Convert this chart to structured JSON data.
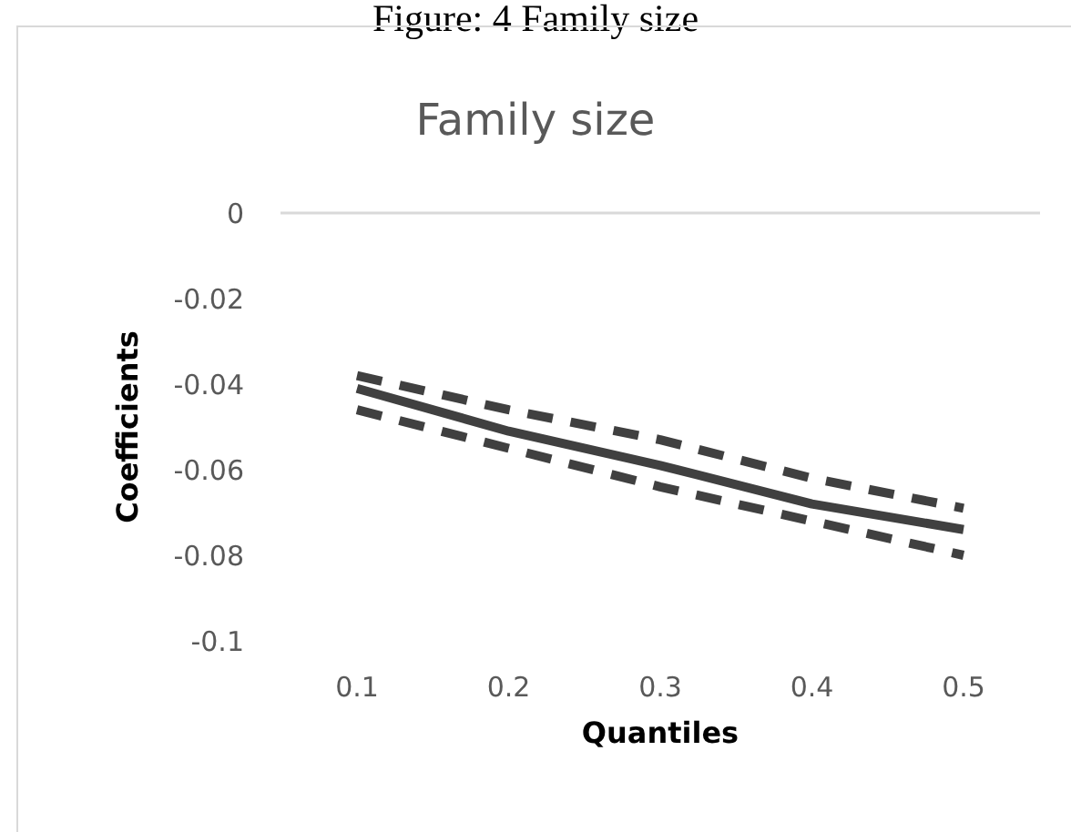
{
  "chart_data": {
    "type": "line",
    "title": "Figure: 4 Family size",
    "subtitle": "Family size",
    "xlabel": "Quantiles",
    "ylabel": "Coefficients",
    "categories": [
      "0.1",
      "0.2",
      "0.3",
      "0.4",
      "0.5"
    ],
    "series": [
      {
        "color": "#404040",
        "line_style": "dashed",
        "values": [
          -0.038,
          -0.046,
          -0.053,
          -0.062,
          -0.069
        ]
      },
      {
        "color": "#404040",
        "line_style": "solid",
        "values": [
          -0.041,
          -0.051,
          -0.059,
          -0.068,
          -0.074
        ]
      },
      {
        "color": "#404040",
        "line_style": "dashed",
        "values": [
          -0.046,
          -0.055,
          -0.064,
          -0.072,
          -0.08
        ]
      }
    ],
    "ylim": [
      -0.1,
      0
    ],
    "yticks": [
      -0.1,
      -0.08,
      -0.06,
      -0.04,
      -0.02,
      0
    ],
    "ref_lines": [
      {
        "axis": "y",
        "value": 0,
        "color": "#d9d9d9"
      }
    ],
    "grid": false,
    "legend": false,
    "marker": "none"
  }
}
